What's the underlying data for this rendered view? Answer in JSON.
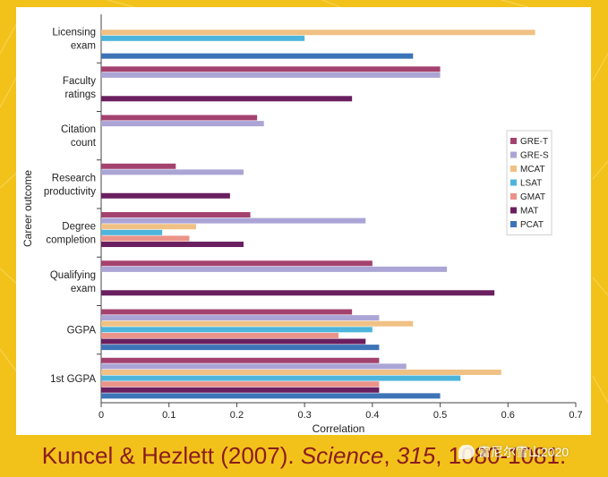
{
  "chart_data": {
    "type": "bar",
    "orientation": "horizontal",
    "xlabel": "Correlation",
    "ylabel": "Career outcome",
    "xlim": [
      0,
      0.7
    ],
    "xticks": [
      "0",
      "0.1",
      "0.2",
      "0.3",
      "0.4",
      "0.5",
      "0.6",
      "0.7"
    ],
    "legend_position": "right",
    "series": [
      {
        "name": "GRE-T",
        "color": "#a4426f"
      },
      {
        "name": "GRE-S",
        "color": "#aba5d6"
      },
      {
        "name": "MCAT",
        "color": "#f0c184"
      },
      {
        "name": "LSAT",
        "color": "#4db5dc"
      },
      {
        "name": "GMAT",
        "color": "#eb9389"
      },
      {
        "name": "MAT",
        "color": "#6a1f5f"
      },
      {
        "name": "PCAT",
        "color": "#3d73b7"
      }
    ],
    "categories": [
      {
        "label": [
          "Licensing",
          "exam"
        ],
        "values": {
          "MCAT": 0.64,
          "LSAT": 0.3,
          "PCAT": 0.46
        }
      },
      {
        "label": [
          "Faculty",
          "ratings"
        ],
        "values": {
          "GRE-T": 0.5,
          "GRE-S": 0.5,
          "MAT": 0.37
        }
      },
      {
        "label": [
          "Citation",
          "count"
        ],
        "values": {
          "GRE-T": 0.23,
          "GRE-S": 0.24
        }
      },
      {
        "label": [
          "Research",
          "productivity"
        ],
        "values": {
          "GRE-T": 0.11,
          "GRE-S": 0.21,
          "MAT": 0.19
        }
      },
      {
        "label": [
          "Degree",
          "completion"
        ],
        "values": {
          "GRE-T": 0.22,
          "GRE-S": 0.39,
          "MCAT": 0.14,
          "LSAT": 0.09,
          "GMAT": 0.13,
          "MAT": 0.21
        }
      },
      {
        "label": [
          "Qualifying",
          "exam"
        ],
        "values": {
          "GRE-T": 0.4,
          "GRE-S": 0.51,
          "MAT": 0.58
        }
      },
      {
        "label": [
          "GGPA"
        ],
        "values": {
          "GRE-T": 0.37,
          "GRE-S": 0.41,
          "MCAT": 0.46,
          "LSAT": 0.4,
          "GMAT": 0.35,
          "MAT": 0.39,
          "PCAT": 0.41
        }
      },
      {
        "label": [
          "1st GGPA"
        ],
        "values": {
          "GRE-T": 0.41,
          "GRE-S": 0.45,
          "MCAT": 0.59,
          "LSAT": 0.53,
          "GMAT": 0.41,
          "MAT": 0.41,
          "PCAT": 0.5
        }
      }
    ]
  },
  "citation": {
    "authors": "Kuncel & Hezlett (2007). ",
    "journal": "Science",
    "separator": ", ",
    "volume": "315",
    "pages": ", 1080-1081."
  },
  "watermark": {
    "text": "雷尼尔雪山2020"
  }
}
